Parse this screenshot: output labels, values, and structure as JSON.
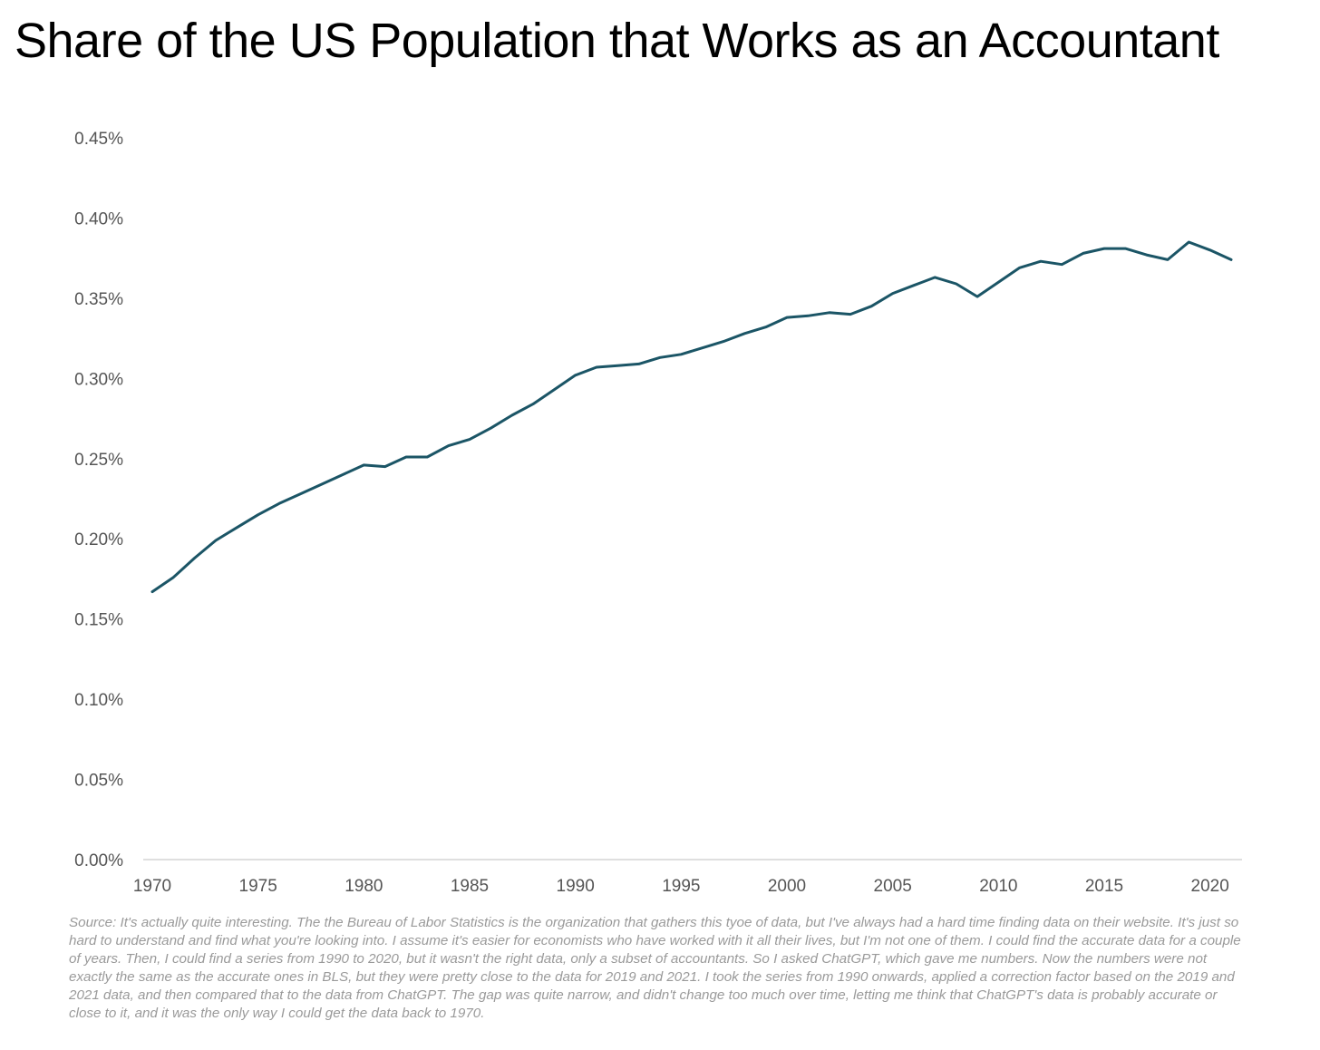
{
  "title": "Share of the US Population that Works as an Accountant",
  "source_note": "Source: It's actually quite interesting. The the Bureau of Labor Statistics is the organization that gathers this tyoe of data, but I've always had a hard time finding data on their website. It's just so hard to understand and find what you're looking into. I assume it's easier for economists who have worked with it all their lives, but I'm not one of them. I could find the accurate data for a couple of years. Then, I could find a series from 1990 to 2020, but it wasn't the right data, only a subset of accountants. So I asked ChatGPT, which gave me numbers. Now the numbers were not exactly the same as the accurate ones in BLS, but they were pretty close to the data for 2019 and 2021. I took the series from 1990 onwards, applied a correction factor based on the 2019 and 2021 data, and then compared that to the data from ChatGPT. The gap was quite narrow, and didn't change too much over time, letting me think that ChatGPT's data is probably accurate or close to it, and it was the only way I could get the data back to 1970.",
  "colors": {
    "line": "#1b5566",
    "axis": "#cccccc",
    "tick_text": "#555555",
    "source_text": "#9a9a9a"
  },
  "chart_data": {
    "type": "line",
    "title": "Share of the US Population that Works as an Accountant",
    "xlabel": "",
    "ylabel": "",
    "xlim": [
      1970,
      2021
    ],
    "ylim": [
      0.0,
      0.45
    ],
    "y_ticks": [
      0.0,
      0.05,
      0.1,
      0.15,
      0.2,
      0.25,
      0.3,
      0.35,
      0.4,
      0.45
    ],
    "y_tick_labels": [
      "0.00%",
      "0.05%",
      "0.10%",
      "0.15%",
      "0.20%",
      "0.25%",
      "0.30%",
      "0.35%",
      "0.40%",
      "0.45%"
    ],
    "x_ticks": [
      1970,
      1975,
      1980,
      1985,
      1990,
      1995,
      2000,
      2005,
      2010,
      2015,
      2020
    ],
    "x_tick_labels": [
      "1970",
      "1975",
      "1980",
      "1985",
      "1990",
      "1995",
      "2000",
      "2005",
      "2010",
      "2015",
      "2020"
    ],
    "grid": false,
    "legend": "none",
    "series": [
      {
        "x": [
          1970,
          1971,
          1972,
          1973,
          1974,
          1975,
          1976,
          1977,
          1978,
          1979,
          1980,
          1981,
          1982,
          1983,
          1984,
          1985,
          1986,
          1987,
          1988,
          1989,
          1990,
          1991,
          1992,
          1993,
          1994,
          1995,
          1996,
          1997,
          1998,
          1999,
          2000,
          2001,
          2002,
          2003,
          2004,
          2005,
          2006,
          2007,
          2008,
          2009,
          2010,
          2011,
          2012,
          2013,
          2014,
          2015,
          2016,
          2017,
          2018,
          2019,
          2020,
          2021
        ],
        "values": [
          0.167,
          0.176,
          0.188,
          0.199,
          0.207,
          0.215,
          0.222,
          0.228,
          0.234,
          0.24,
          0.246,
          0.245,
          0.251,
          0.251,
          0.258,
          0.262,
          0.269,
          0.277,
          0.284,
          0.293,
          0.302,
          0.307,
          0.308,
          0.309,
          0.313,
          0.315,
          0.319,
          0.323,
          0.328,
          0.332,
          0.338,
          0.339,
          0.341,
          0.34,
          0.345,
          0.353,
          0.358,
          0.363,
          0.359,
          0.351,
          0.36,
          0.369,
          0.373,
          0.371,
          0.378,
          0.381,
          0.381,
          0.377,
          0.374,
          0.385,
          0.38,
          0.374
        ]
      }
    ]
  }
}
